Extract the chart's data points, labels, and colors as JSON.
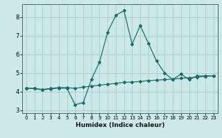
{
  "xlabel": "Humidex (Indice chaleur)",
  "background_color": "#cce8e8",
  "grid_color": "#aacfcf",
  "line_color": "#1a6b6b",
  "x_values": [
    0,
    1,
    2,
    3,
    4,
    5,
    6,
    7,
    8,
    9,
    10,
    11,
    12,
    13,
    14,
    15,
    16,
    17,
    18,
    19,
    20,
    21,
    22,
    23
  ],
  "line1_y": [
    4.18,
    4.18,
    4.1,
    4.15,
    4.2,
    4.18,
    3.3,
    3.42,
    4.65,
    5.6,
    7.2,
    8.1,
    8.35,
    6.55,
    7.55,
    6.6,
    5.65,
    5.0,
    4.65,
    4.95,
    4.65,
    4.85,
    4.85,
    4.85
  ],
  "line2_y": [
    4.18,
    4.18,
    4.12,
    4.18,
    4.22,
    4.22,
    4.18,
    4.25,
    4.3,
    4.35,
    4.4,
    4.45,
    4.5,
    4.52,
    4.55,
    4.6,
    4.62,
    4.65,
    4.68,
    4.72,
    4.75,
    4.78,
    4.82,
    4.85
  ],
  "ylim": [
    2.85,
    8.7
  ],
  "xlim": [
    -0.5,
    23.5
  ],
  "yticks": [
    3,
    4,
    5,
    6,
    7,
    8
  ],
  "xticks": [
    0,
    1,
    2,
    3,
    4,
    5,
    6,
    7,
    8,
    9,
    10,
    11,
    12,
    13,
    14,
    15,
    16,
    17,
    18,
    19,
    20,
    21,
    22,
    23
  ],
  "xlabel_fontsize": 6.5,
  "tick_fontsize_x": 5.0,
  "tick_fontsize_y": 6.0
}
